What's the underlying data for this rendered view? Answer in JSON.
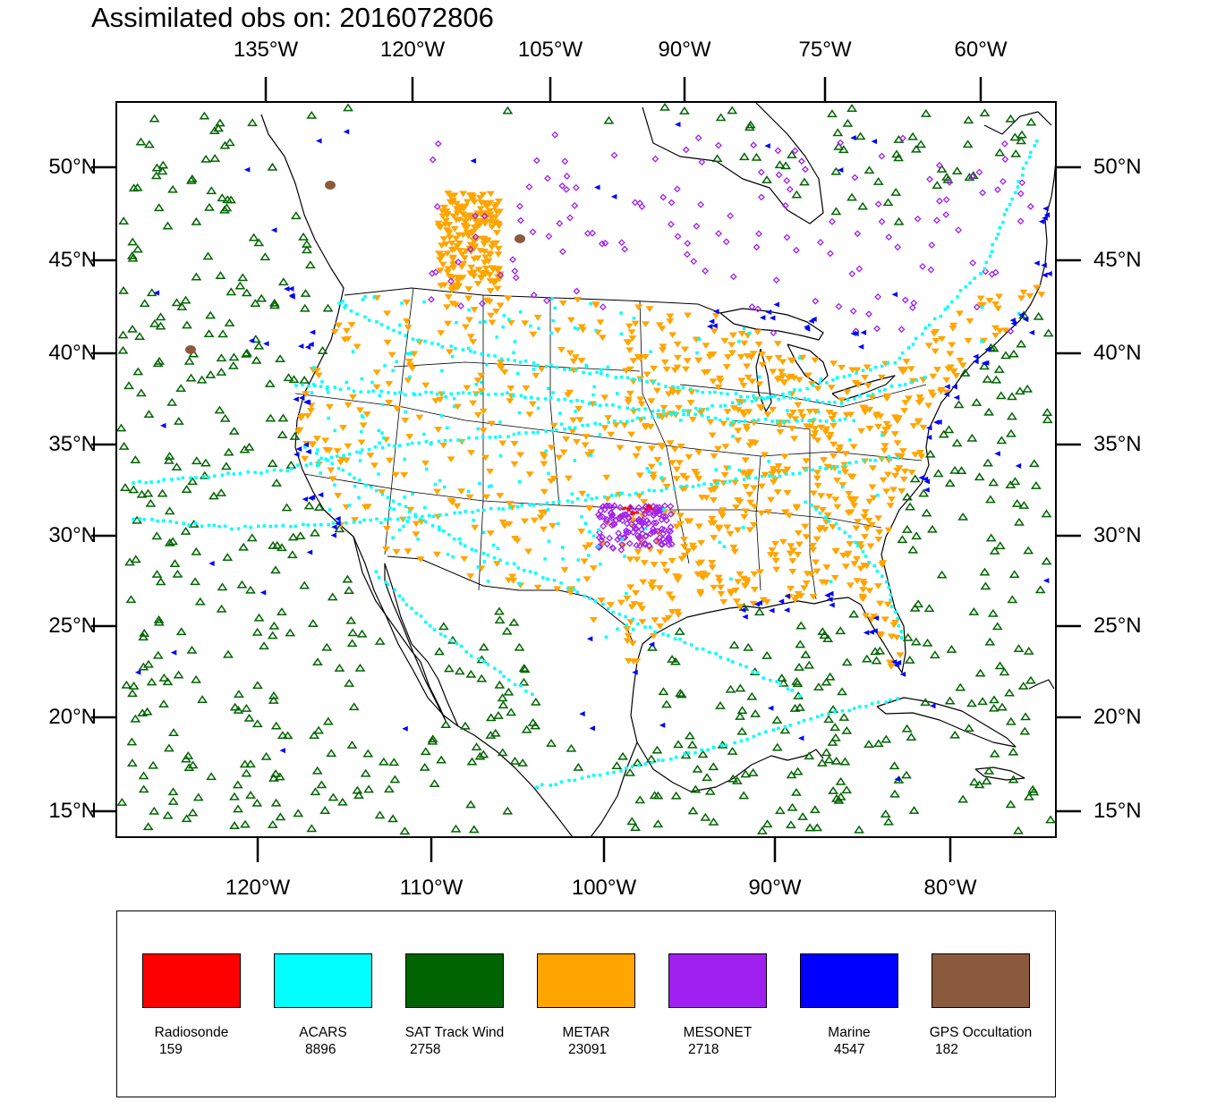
{
  "title": "Assimilated obs on: 2016072806",
  "map": {
    "extent": {
      "lon": [
        -128,
        -74
      ],
      "lat": [
        13.5,
        53.5
      ]
    },
    "top_axis_labels": [
      "135°W",
      "120°W",
      "105°W",
      "90°W",
      "75°W",
      "60°W"
    ],
    "bottom_axis_labels": [
      "120°W",
      "110°W",
      "100°W",
      "90°W",
      "80°W"
    ],
    "left_axis_labels": [
      "50°N",
      "45°N",
      "40°N",
      "35°N",
      "30°N",
      "25°N",
      "20°N",
      "15°N"
    ],
    "right_axis_labels": [
      "50°N",
      "45°N",
      "40°N",
      "35°N",
      "30°N",
      "25°N",
      "20°N",
      "15°N"
    ]
  },
  "legend": [
    {
      "label": "Radiosonde",
      "count": "159",
      "color": "#ff0000"
    },
    {
      "label": "ACARS",
      "count": "8896",
      "color": "#00ffff"
    },
    {
      "label": "SAT Track Wind",
      "count": "2758",
      "color": "#006400"
    },
    {
      "label": "METAR",
      "count": "23091",
      "color": "#ffa500"
    },
    {
      "label": "MESONET",
      "count": "2718",
      "color": "#a020f0"
    },
    {
      "label": "Marine",
      "count": "4547",
      "color": "#0000ff"
    },
    {
      "label": "GPS Occultation",
      "count": "182",
      "color": "#8b5a3c"
    }
  ],
  "colors": {
    "sat_track_wind": "#006400",
    "acars": "#00ffff",
    "metar": "#ffa500",
    "mesonet": "#a020f0",
    "marine": "#0000ff",
    "gps": "#8b5a3c",
    "radiosonde": "#ff0000",
    "coastline": "#000000"
  }
}
